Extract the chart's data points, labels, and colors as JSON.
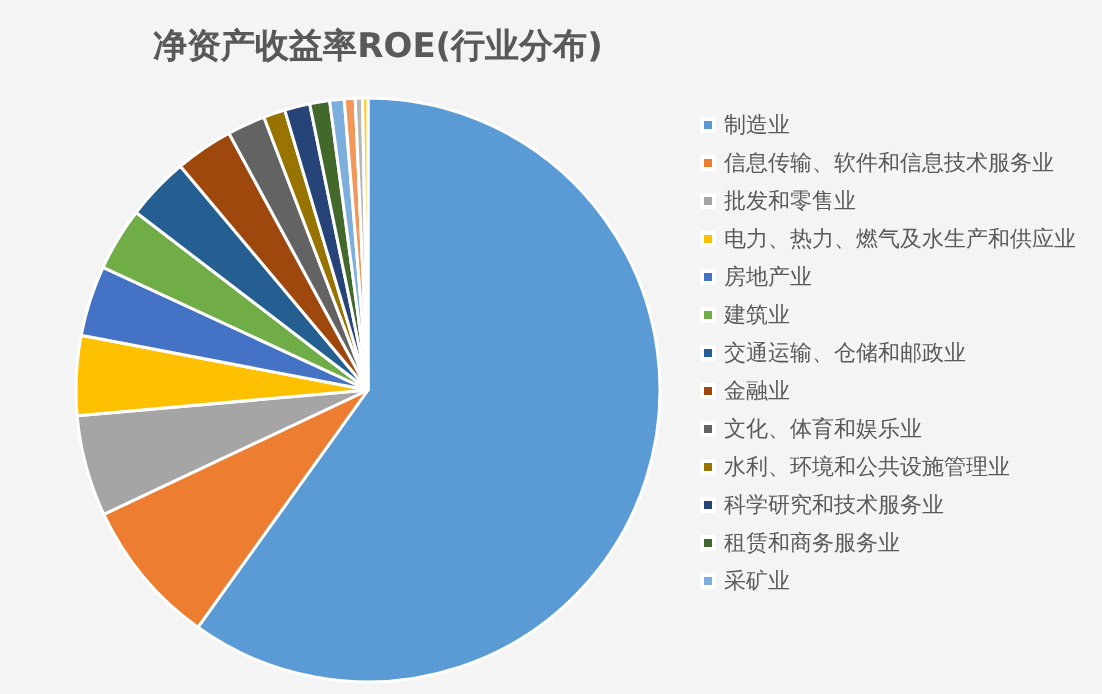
{
  "chart_data": {
    "type": "pie",
    "title": "净资产收益率ROE(行业分布)",
    "categories": [
      "制造业",
      "信息传输、软件和信息技术服务业",
      "批发和零售业",
      "电力、热力、燃气及水生产和供应业",
      "房地产业",
      "建筑业",
      "交通运输、仓储和邮政业",
      "金融业",
      "文化、体育和娱乐业",
      "水利、环境和公共设施管理业",
      "科学研究和技术服务业",
      "租赁和商务服务业",
      "采矿业",
      null,
      null,
      null
    ],
    "values": [
      59.9,
      8.1,
      5.6,
      4.4,
      3.9,
      3.5,
      3.5,
      3.2,
      2.1,
      1.2,
      1.4,
      1.1,
      0.8,
      0.6,
      0.4,
      0.3
    ],
    "colors": [
      "#5b9bd5",
      "#ed7d31",
      "#a5a5a5",
      "#ffc000",
      "#4472c4",
      "#70ad47",
      "#255e91",
      "#9e480e",
      "#636363",
      "#997300",
      "#264478",
      "#43682b",
      "#7cafdd",
      "#f1975a",
      "#b7b7b7",
      "#ffcd33"
    ],
    "legend": "right"
  }
}
